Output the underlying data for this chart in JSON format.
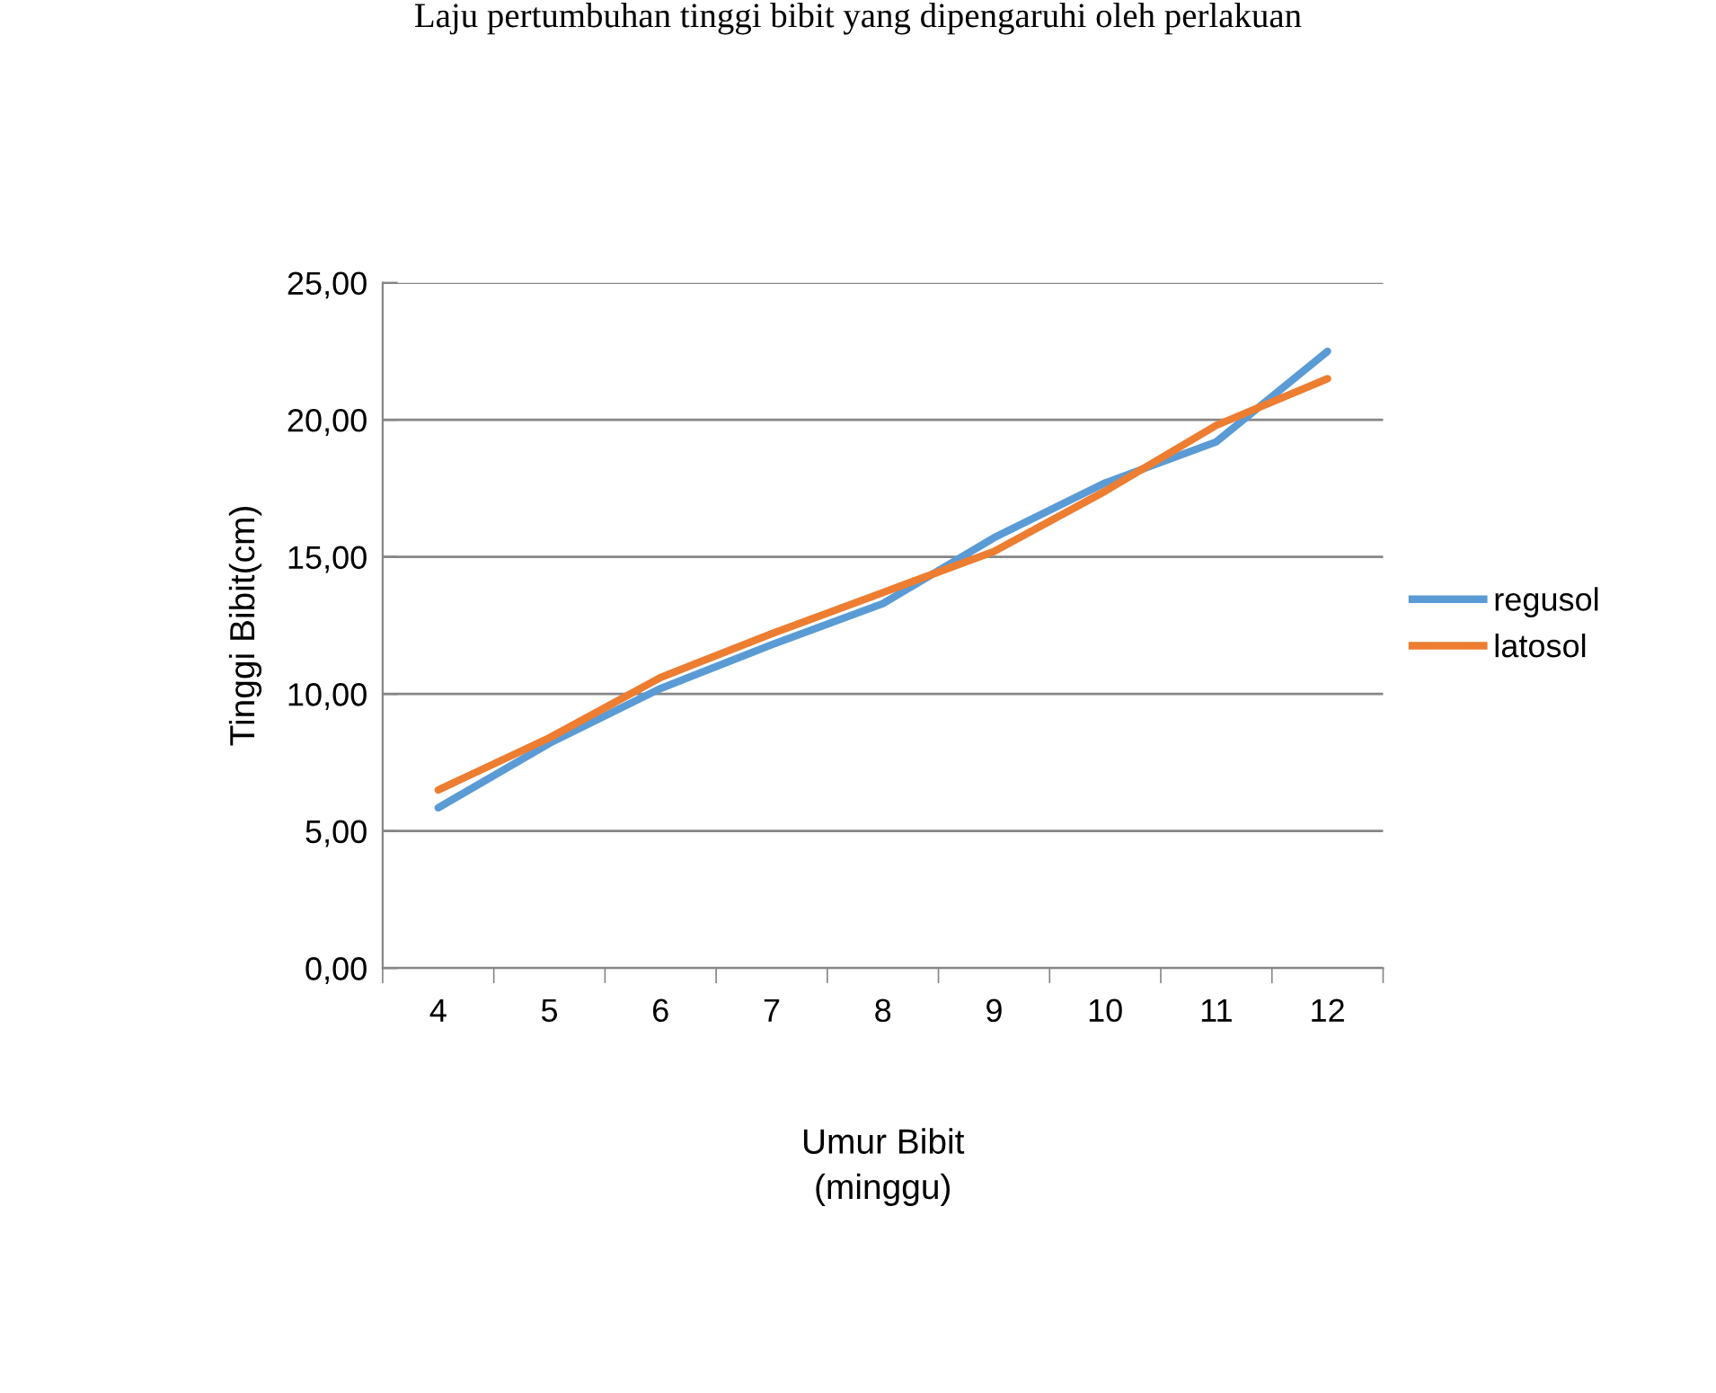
{
  "chart_data": {
    "type": "line",
    "annotations": [
      "Laju pertumbuhan tinggi bibit yang dipengaruhi oleh perlakuan"
    ],
    "xlabel": "Umur Bibit\n(minggu)",
    "ylabel": "Tinggi Bibit(cm)",
    "categories": [
      "4",
      "5",
      "6",
      "7",
      "8",
      "9",
      "10",
      "11",
      "12"
    ],
    "series": [
      {
        "name": "regusol",
        "color": "#5b9bd5",
        "values": [
          5.85,
          8.2,
          10.2,
          11.8,
          13.3,
          15.7,
          17.7,
          19.2,
          22.5
        ]
      },
      {
        "name": "latosol",
        "color": "#ed7d31",
        "values": [
          6.5,
          8.4,
          10.6,
          12.2,
          13.7,
          15.2,
          17.4,
          19.8,
          21.5
        ]
      }
    ],
    "ylim": [
      0,
      25
    ],
    "yticks": [
      {
        "value": 0,
        "label": "0,00"
      },
      {
        "value": 5,
        "label": "5,00"
      },
      {
        "value": 10,
        "label": "10,00"
      },
      {
        "value": 15,
        "label": "15,00"
      },
      {
        "value": 20,
        "label": "20,00"
      },
      {
        "value": 25,
        "label": "25,00"
      }
    ],
    "grid": "y",
    "legend": "right",
    "marker": "none",
    "line_style": "solid"
  }
}
